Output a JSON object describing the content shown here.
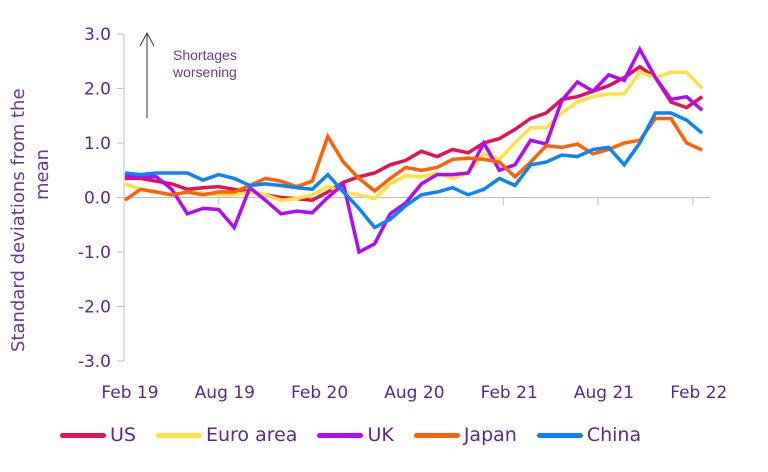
{
  "chart_data": {
    "type": "line",
    "title": "",
    "ylabel": "Standard deviations from the mean",
    "xlabel": "",
    "ylim": [
      -3.0,
      3.0
    ],
    "yticks": [
      "3.0",
      "2.0",
      "1.0",
      "0.0",
      "-1.0",
      "-2.0",
      "-3.0"
    ],
    "ytick_values": [
      3,
      2,
      1,
      0,
      -1,
      -2,
      -3
    ],
    "xtick_labels": [
      "Feb 19",
      "Aug 19",
      "Feb 20",
      "Aug 20",
      "Feb 21",
      "Aug 21",
      "Feb 22"
    ],
    "xtick_index": [
      0,
      6,
      12,
      18,
      24,
      30,
      36
    ],
    "annotation": {
      "line1": "Shortages",
      "line2": "worsening"
    },
    "legend_position": "bottom",
    "grid": false,
    "series": [
      {
        "name": "US",
        "color": "#e8114f",
        "values": [
          0.35,
          0.35,
          0.3,
          0.25,
          0.15,
          0.18,
          0.2,
          0.15,
          0.1,
          0.05,
          0.0,
          -0.02,
          -0.05,
          0.1,
          0.28,
          0.38,
          0.45,
          0.6,
          0.68,
          0.85,
          0.75,
          0.88,
          0.82,
          1.0,
          1.08,
          1.25,
          1.45,
          1.55,
          1.8,
          1.85,
          1.95,
          2.05,
          2.2,
          2.4,
          2.2,
          1.75,
          1.65,
          1.85
        ]
      },
      {
        "name": "Euro area",
        "color": "#ffe23f",
        "values": [
          0.25,
          0.15,
          0.1,
          0.05,
          0.1,
          0.08,
          0.05,
          0.05,
          0.1,
          0.05,
          -0.05,
          -0.02,
          0.05,
          0.2,
          0.1,
          0.05,
          -0.02,
          0.25,
          0.4,
          0.38,
          0.45,
          0.35,
          0.45,
          0.8,
          0.7,
          1.0,
          1.28,
          1.28,
          1.55,
          1.75,
          1.85,
          1.9,
          1.9,
          2.3,
          2.2,
          2.3,
          2.3,
          2.0
        ]
      },
      {
        "name": "UK",
        "color": "#b10bf5",
        "values": [
          0.4,
          0.38,
          0.38,
          0.15,
          -0.3,
          -0.2,
          -0.22,
          -0.55,
          0.18,
          -0.05,
          -0.3,
          -0.25,
          -0.28,
          0.0,
          0.25,
          -1.0,
          -0.85,
          -0.3,
          -0.1,
          0.25,
          0.42,
          0.42,
          0.45,
          1.0,
          0.5,
          0.6,
          1.05,
          0.98,
          1.78,
          2.12,
          1.95,
          2.25,
          2.15,
          2.72,
          2.2,
          1.8,
          1.85,
          1.6
        ]
      },
      {
        "name": "Japan",
        "color": "#ff6205",
        "values": [
          -0.05,
          0.15,
          0.1,
          0.05,
          0.1,
          0.05,
          0.1,
          0.1,
          0.22,
          0.35,
          0.3,
          0.2,
          0.3,
          1.12,
          0.65,
          0.35,
          0.12,
          0.35,
          0.55,
          0.5,
          0.55,
          0.7,
          0.72,
          0.7,
          0.65,
          0.38,
          0.65,
          0.95,
          0.92,
          0.98,
          0.8,
          0.88,
          1.0,
          1.05,
          1.45,
          1.45,
          1.0,
          0.87
        ]
      },
      {
        "name": "China",
        "color": "#0b84f5",
        "values": [
          0.45,
          0.42,
          0.45,
          0.45,
          0.45,
          0.32,
          0.42,
          0.35,
          0.22,
          0.25,
          0.22,
          0.18,
          0.15,
          0.42,
          0.1,
          -0.2,
          -0.55,
          -0.4,
          -0.15,
          0.05,
          0.1,
          0.18,
          0.05,
          0.15,
          0.35,
          0.22,
          0.6,
          0.65,
          0.78,
          0.75,
          0.88,
          0.92,
          0.6,
          1.0,
          1.55,
          1.55,
          1.42,
          1.18
        ]
      }
    ]
  }
}
